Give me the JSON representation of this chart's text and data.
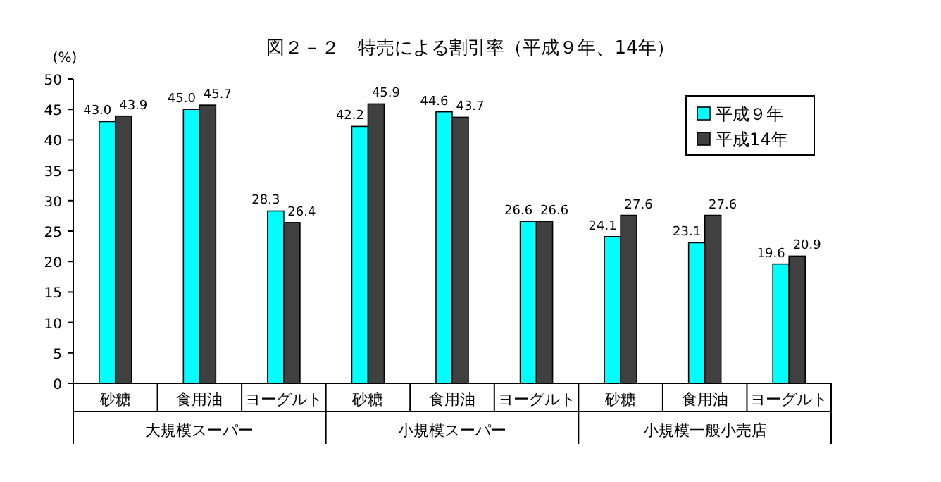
{
  "chart_data": {
    "type": "bar",
    "title": "図２－２　特売による割引率（平成９年、14年）",
    "ylabel": "(%)",
    "categories": [
      "砂糖",
      "食用油",
      "ヨーグルト",
      "砂糖",
      "食用油",
      "ヨーグルト",
      "砂糖",
      "食用油",
      "ヨーグルト"
    ],
    "annotations": [
      "大規模スーパー",
      "小規模スーパー",
      "小規模一般小売店"
    ],
    "series": [
      {
        "name": "平成９年",
        "color": "#00ffff",
        "values": [
          43.0,
          45.0,
          28.3,
          42.2,
          44.6,
          26.6,
          24.1,
          23.1,
          19.6
        ],
        "value_labels": [
          "43.0",
          "45.0",
          "28.3",
          "42.2",
          "44.6",
          "26.6",
          "24.1",
          "23.1",
          "19.6"
        ]
      },
      {
        "name": "平成14年",
        "color": "#404040",
        "values": [
          43.9,
          45.7,
          26.4,
          45.9,
          43.7,
          26.6,
          27.6,
          27.6,
          20.9
        ],
        "value_labels": [
          "43.9",
          "45.7",
          "26.4",
          "45.9",
          "43.7",
          "26.6",
          "27.6",
          "27.6",
          "20.9"
        ]
      }
    ],
    "ylim": [
      0,
      50
    ],
    "yticks": [
      0,
      5,
      10,
      15,
      20,
      25,
      30,
      35,
      40,
      45,
      50
    ],
    "grid": false,
    "legend": "top right"
  }
}
